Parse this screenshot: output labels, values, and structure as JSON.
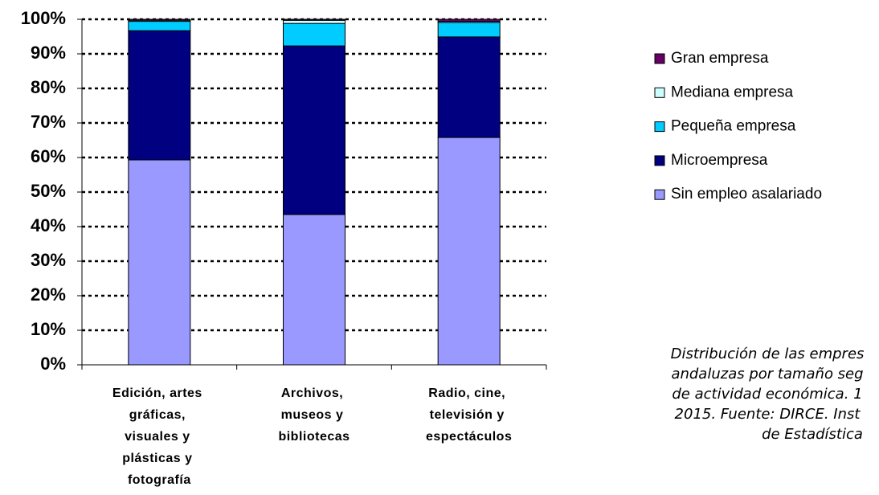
{
  "chart_data": {
    "type": "stacked_bar",
    "categories": [
      "Edición, artes gráficas, visuales y plásticas y fotografía",
      "Archivos, museos y bibliotecas",
      "Radio, cine, televisión y espectáculos"
    ],
    "series": [
      {
        "name": "Sin empleo asalariado",
        "color": "#9999ff",
        "values": [
          59.3,
          43.5,
          65.8
        ]
      },
      {
        "name": "Microempresa",
        "color": "#000080",
        "values": [
          37.4,
          48.8,
          29.1
        ]
      },
      {
        "name": "Pequeña empresa",
        "color": "#00ccff",
        "values": [
          2.7,
          6.5,
          4.2
        ]
      },
      {
        "name": "Mediana empresa",
        "color": "#ccffff",
        "values": [
          0.3,
          0.9,
          0.3
        ]
      },
      {
        "name": "Gran empresa",
        "color": "#660066",
        "values": [
          0.3,
          0.3,
          0.6
        ]
      }
    ],
    "ylim": [
      0,
      100
    ],
    "yticks": [
      {
        "value": 0,
        "label": "0%"
      },
      {
        "value": 10,
        "label": "10%"
      },
      {
        "value": 20,
        "label": "20%"
      },
      {
        "value": 30,
        "label": "30%"
      },
      {
        "value": 40,
        "label": "40%"
      },
      {
        "value": 50,
        "label": "50%"
      },
      {
        "value": 60,
        "label": "60%"
      },
      {
        "value": 70,
        "label": "70%"
      },
      {
        "value": 80,
        "label": "80%"
      },
      {
        "value": 90,
        "label": "90%"
      },
      {
        "value": 100,
        "label": "100%"
      }
    ],
    "grid": true,
    "legend": "right",
    "annotation": [
      "Distribución de las empres",
      "andaluzas por tamaño seg",
      "de actividad económica. 1",
      "2015. Fuente: DIRCE. Inst",
      "de Estadística"
    ]
  }
}
